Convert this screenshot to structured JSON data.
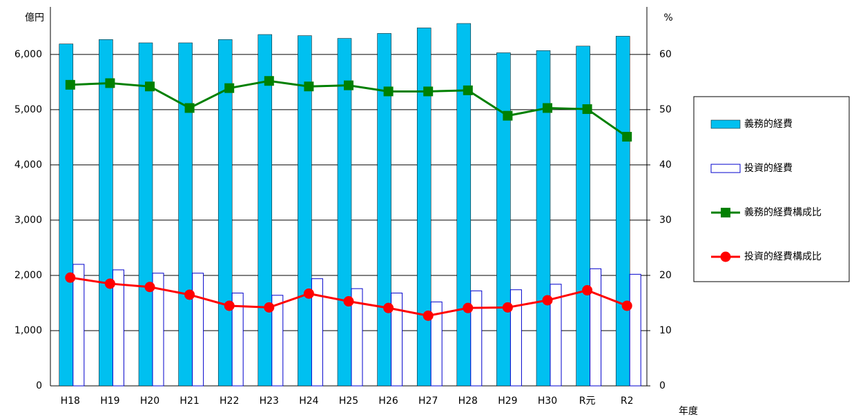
{
  "chart_data": {
    "type": "bar-line",
    "y_unit": "億円",
    "y2_unit": "%",
    "x_label": "年度",
    "categories": [
      "H18",
      "H19",
      "H20",
      "H21",
      "H22",
      "H23",
      "H24",
      "H25",
      "H26",
      "H27",
      "H28",
      "H29",
      "H30",
      "R元",
      "R2"
    ],
    "series": [
      {
        "name": "義務的経費",
        "type": "bar",
        "color": "#00c0f0",
        "values": [
          6190,
          6270,
          6210,
          6210,
          6270,
          6360,
          6340,
          6290,
          6380,
          6480,
          6560,
          6030,
          6070,
          6150,
          6330
        ]
      },
      {
        "name": "投資的経費",
        "type": "bar",
        "color": "#0000cc",
        "values": [
          2200,
          2100,
          2040,
          2040,
          1680,
          1640,
          1940,
          1760,
          1680,
          1520,
          1720,
          1740,
          1840,
          2120,
          2020
        ]
      },
      {
        "name": "義務的経費構成比",
        "type": "line",
        "axis": "y2",
        "color": "#008000",
        "marker": "square",
        "values": [
          54.5,
          54.8,
          54.2,
          50.3,
          53.9,
          55.2,
          54.2,
          54.4,
          53.3,
          53.3,
          53.5,
          48.9,
          50.3,
          50.1,
          45.1
        ]
      },
      {
        "name": "投資的経費構成比",
        "type": "line",
        "axis": "y2",
        "color": "#ff0000",
        "marker": "circle",
        "values": [
          19.6,
          18.5,
          17.9,
          16.5,
          14.5,
          14.2,
          16.7,
          15.3,
          14.1,
          12.7,
          14.1,
          14.2,
          15.5,
          17.3,
          14.5
        ]
      }
    ],
    "ylim": [
      0,
      6860
    ],
    "yticks": [
      0,
      {
        "value": 1000,
        "label": "1,000"
      },
      {
        "value": 2000,
        "label": "2,000"
      },
      {
        "value": 3000,
        "label": "3,000"
      },
      {
        "value": 4000,
        "label": "4,000"
      },
      {
        "value": 5000,
        "label": "5,000"
      },
      {
        "value": 6000,
        "label": "6,000"
      }
    ],
    "y2lim": [
      0,
      68.6
    ],
    "y2ticks": [
      0,
      10,
      20,
      30,
      40,
      50,
      60
    ],
    "grid": true,
    "legend": "right"
  }
}
